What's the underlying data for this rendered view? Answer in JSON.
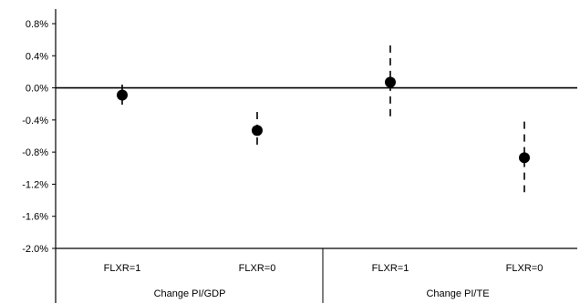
{
  "chart_data": {
    "type": "scatter",
    "title": "",
    "xlabel": "",
    "ylabel": "",
    "ylim": [
      -2.0,
      0.9
    ],
    "yticks": [
      "0.8%",
      "0.4%",
      "0.0%",
      "-0.4%",
      "-0.8%",
      "-1.2%",
      "-1.6%",
      "-2.0%"
    ],
    "ytick_values": [
      0.8,
      0.4,
      0.0,
      -0.4,
      -0.8,
      -1.2,
      -1.6,
      -2.0
    ],
    "grid": false,
    "categories": [
      "FLXR=1",
      "FLXR=0",
      "FLXR=1",
      "FLXR=0"
    ],
    "groups": [
      {
        "label": "Change PI/GDP",
        "categories": [
          0,
          1
        ]
      },
      {
        "label": "Change PI/TE",
        "categories": [
          2,
          3
        ]
      }
    ],
    "points": [
      {
        "category": 0,
        "value": -0.09,
        "ci_low": -0.22,
        "ci_high": 0.04
      },
      {
        "category": 1,
        "value": -0.53,
        "ci_low": -0.74,
        "ci_high": -0.3
      },
      {
        "category": 2,
        "value": 0.07,
        "ci_low": -0.4,
        "ci_high": 0.53
      },
      {
        "category": 3,
        "value": -0.87,
        "ci_low": -1.3,
        "ci_high": -0.42
      }
    ],
    "colors": {
      "marker": "#000000",
      "axis": "#000000"
    }
  }
}
